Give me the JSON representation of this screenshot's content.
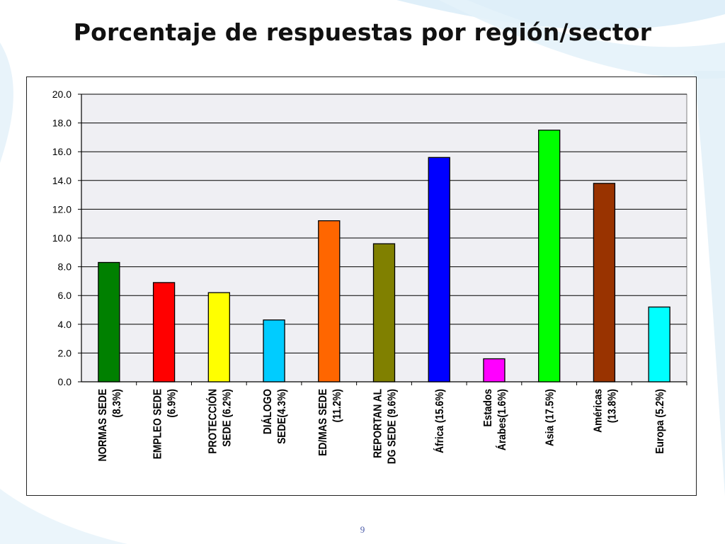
{
  "slide": {
    "title": "Porcentaje de respuestas por región/sector",
    "page_number": "9"
  },
  "chart_data": {
    "type": "bar",
    "title": "",
    "xlabel": "",
    "ylabel": "",
    "ylim": [
      0,
      20
    ],
    "ytick_step": 2,
    "ytick_labels": [
      "0.0",
      "2.0",
      "4.0",
      "6.0",
      "8.0",
      "10.0",
      "12.0",
      "14.0",
      "16.0",
      "18.0",
      "20.0"
    ],
    "grid": true,
    "legend": "none",
    "categories": [
      [
        "NORMAS SEDE",
        "(8.3%)"
      ],
      [
        "EMPLEO SEDE",
        "(6.9%)"
      ],
      [
        "PROTECCIÓN",
        "SEDE (6.2%)"
      ],
      [
        "DIÁLOGO",
        "SEDE(4.3%)"
      ],
      [
        "ED/MAS SEDE",
        "(11.2%)"
      ],
      [
        "REPORTAN AL",
        "DG SEDE (9.6%)"
      ],
      [
        "África (15.6%)"
      ],
      [
        "Estados",
        "Árabes(1.6%)"
      ],
      [
        "Asia (17.5%)"
      ],
      [
        "Américas",
        "(13.8%)"
      ],
      [
        "Europa (5.2%)"
      ]
    ],
    "values": [
      8.3,
      6.9,
      6.2,
      4.3,
      11.2,
      9.6,
      15.6,
      1.6,
      17.5,
      13.8,
      5.2
    ],
    "colors": [
      "#008000",
      "#ff0000",
      "#ffff00",
      "#00ccff",
      "#ff6600",
      "#808000",
      "#0000ff",
      "#ff00ff",
      "#00ff00",
      "#993300",
      "#00ffff"
    ],
    "plot_background": "#efeff3"
  }
}
